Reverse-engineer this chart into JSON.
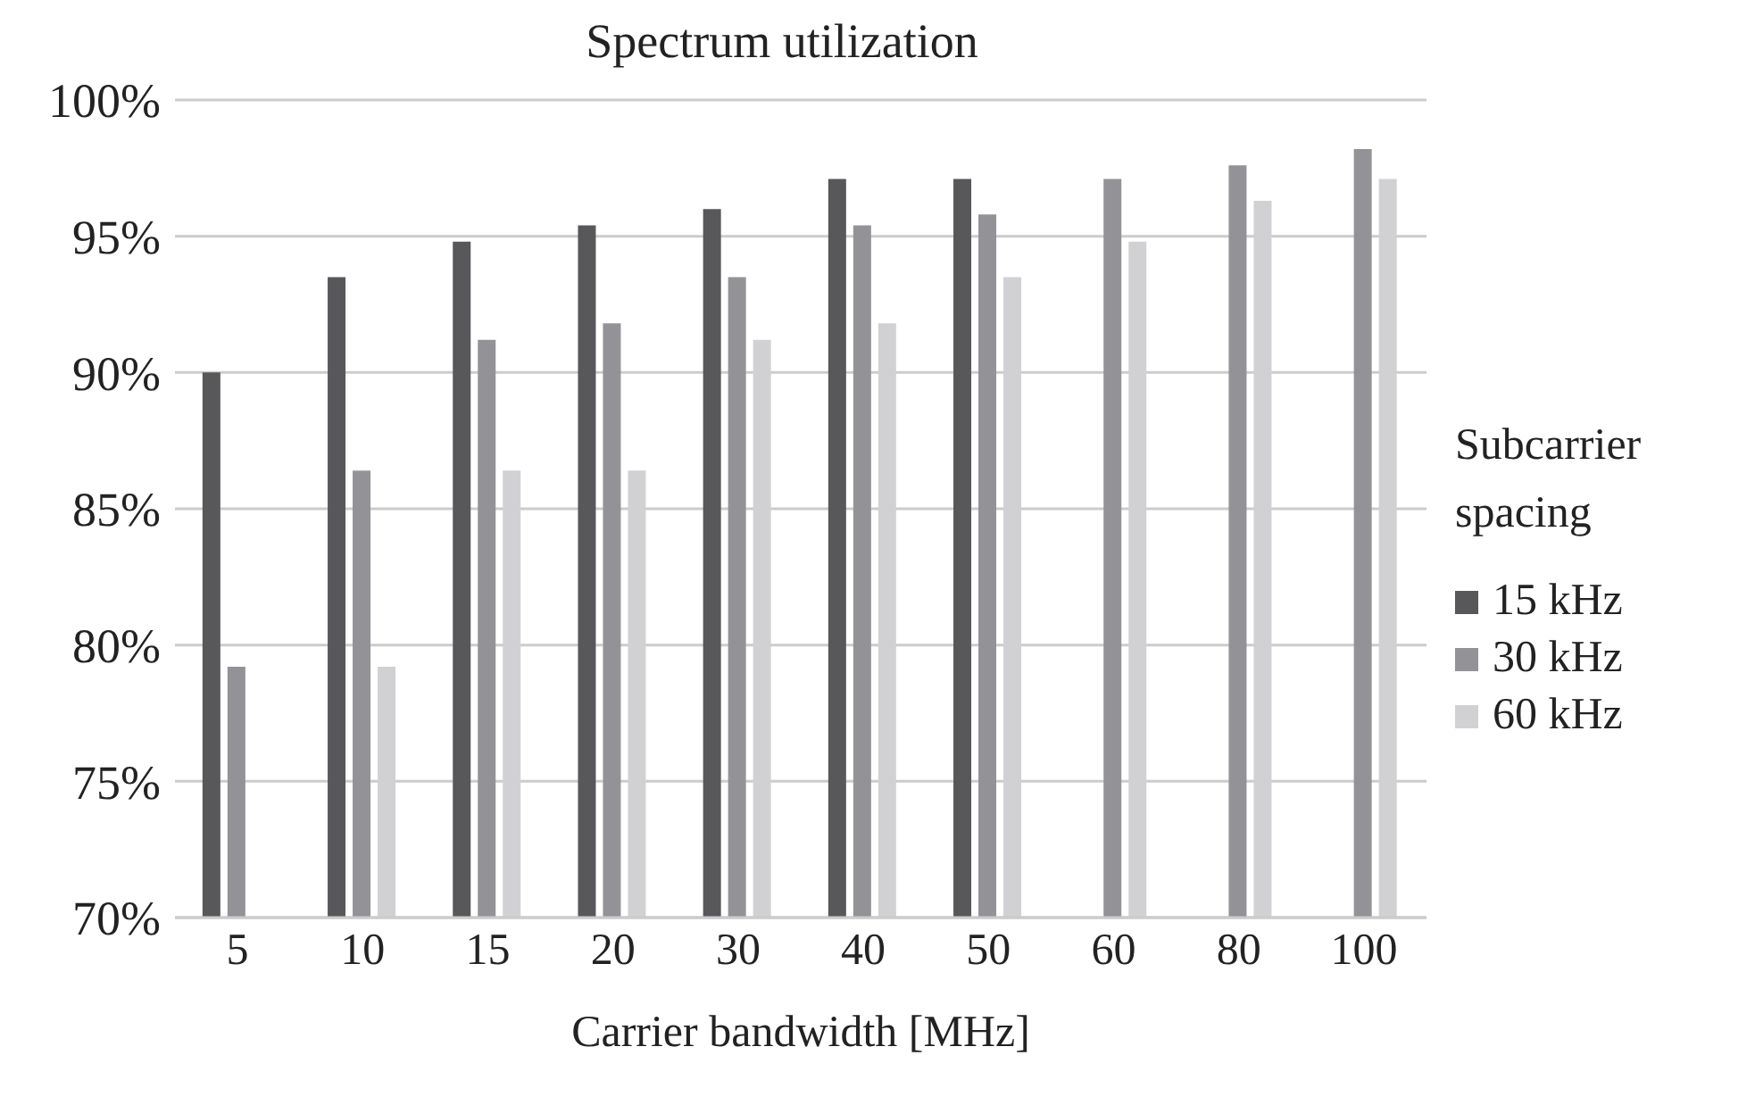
{
  "chart_data": {
    "type": "bar",
    "title": "Spectrum utilization",
    "xlabel": "Carrier bandwidth [MHz]",
    "legend_title": "Subcarrier spacing",
    "categories": [
      "5",
      "10",
      "15",
      "20",
      "30",
      "40",
      "50",
      "60",
      "80",
      "100"
    ],
    "series": [
      {
        "name": "15 kHz",
        "color": "#58585a",
        "values": [
          90,
          93.5,
          94.8,
          95.4,
          96.0,
          97.1,
          97.1,
          null,
          null,
          null
        ]
      },
      {
        "name": "30 kHz",
        "color": "#939397",
        "values": [
          79.2,
          86.4,
          91.2,
          91.8,
          93.5,
          95.4,
          95.8,
          97.1,
          97.6,
          98.2
        ]
      },
      {
        "name": "60 kHz",
        "color": "#d1d1d3",
        "values": [
          null,
          79.2,
          86.4,
          86.4,
          91.2,
          91.8,
          93.5,
          94.8,
          96.3,
          97.1
        ]
      }
    ],
    "ylim": [
      70,
      100
    ],
    "yticks": [
      {
        "value": 70,
        "label": "70%"
      },
      {
        "value": 75,
        "label": "75%"
      },
      {
        "value": 80,
        "label": "80%"
      },
      {
        "value": 85,
        "label": "85%"
      },
      {
        "value": 90,
        "label": "90%"
      },
      {
        "value": 95,
        "label": "95%"
      },
      {
        "value": 100,
        "label": "100%"
      }
    ],
    "grid": "y",
    "legend": "right"
  }
}
